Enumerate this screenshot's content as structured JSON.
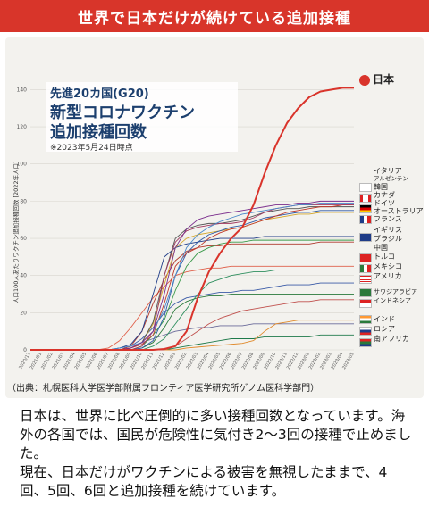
{
  "banner": {
    "title": "世界で日本だけが続けている追加接種"
  },
  "chart_data": {
    "type": "line",
    "title": "先進20カ国(G20)",
    "subtitle_line1": "新型コロナワクチン",
    "subtitle_line2": "追加接種回数",
    "note": "※2023年5月24日時点",
    "ylabel": "人口100人あたりワクチン追加接種回数 [2022年人口]",
    "ylim": [
      0,
      145
    ],
    "yticks": [
      0,
      20,
      40,
      60,
      80,
      100,
      120,
      140
    ],
    "x": [
      "2020/12",
      "2021/01",
      "2021/02",
      "2021/03",
      "2021/04",
      "2021/05",
      "2021/06",
      "2021/07",
      "2021/08",
      "2021/09",
      "2021/10",
      "2021/11",
      "2021/12",
      "2022/01",
      "2022/02",
      "2022/03",
      "2022/04",
      "2022/05",
      "2022/06",
      "2022/07",
      "2022/08",
      "2022/09",
      "2022/10",
      "2022/11",
      "2022/12",
      "2023/01",
      "2023/02",
      "2023/03",
      "2023/04",
      "2023/05"
    ],
    "series": [
      {
        "name": "日本",
        "color": "#d9342b",
        "highlight": true,
        "values": [
          0,
          0,
          0,
          0,
          0,
          0,
          0,
          0,
          0,
          0,
          0,
          0,
          0.5,
          2,
          10,
          28,
          42,
          52,
          60,
          66,
          78,
          95,
          110,
          122,
          130,
          136,
          139,
          140,
          141,
          141
        ]
      },
      {
        "name": "イタリア",
        "color": "#7a2d8c",
        "values": [
          0,
          0,
          0,
          0,
          0,
          0,
          0,
          0,
          0,
          1,
          4,
          10,
          30,
          55,
          65,
          70,
          72,
          73,
          74,
          75,
          76,
          77,
          78,
          78,
          79,
          79,
          80,
          80,
          80,
          80
        ]
      },
      {
        "name": "アルゼンチン",
        "color": "#4a89c9",
        "values": [
          0,
          0,
          0,
          0,
          0,
          0,
          0,
          0,
          1,
          2,
          4,
          10,
          22,
          40,
          55,
          62,
          66,
          69,
          71,
          73,
          74,
          75,
          76,
          77,
          78,
          78,
          79,
          79,
          79,
          79
        ]
      },
      {
        "name": "韓国",
        "color": "#a23a62",
        "values": [
          0,
          0,
          0,
          0,
          0,
          0,
          0,
          0,
          0,
          0,
          2,
          10,
          40,
          58,
          64,
          66,
          67,
          68,
          68,
          69,
          71,
          74,
          76,
          77,
          78,
          78,
          78,
          78,
          78,
          78
        ]
      },
      {
        "name": "カナダ",
        "color": "#c0392b",
        "values": [
          0,
          0,
          0,
          0,
          0,
          0,
          0,
          0,
          0,
          1,
          3,
          8,
          25,
          45,
          52,
          55,
          60,
          63,
          65,
          66,
          68,
          70,
          72,
          74,
          75,
          76,
          77,
          77,
          78,
          78
        ]
      },
      {
        "name": "ドイツ",
        "color": "#555555",
        "values": [
          0,
          0,
          0,
          0,
          0,
          0,
          0,
          0,
          0,
          1,
          4,
          15,
          40,
          60,
          65,
          67,
          68,
          68,
          69,
          70,
          72,
          74,
          75,
          76,
          76,
          77,
          77,
          77,
          77,
          77
        ]
      },
      {
        "name": "オーストラリア",
        "color": "#2e5aa8",
        "values": [
          0,
          0,
          0,
          0,
          0,
          0,
          0,
          0,
          0,
          0,
          1,
          5,
          18,
          40,
          52,
          58,
          62,
          64,
          66,
          67,
          69,
          71,
          72,
          73,
          74,
          74,
          75,
          75,
          75,
          75
        ]
      },
      {
        "name": "フランス",
        "color": "#d4a72c",
        "values": [
          0,
          0,
          0,
          0,
          0,
          0,
          0,
          0,
          0,
          1,
          4,
          14,
          35,
          55,
          60,
          62,
          63,
          64,
          65,
          66,
          68,
          70,
          71,
          72,
          73,
          73,
          74,
          74,
          74,
          74
        ]
      },
      {
        "name": "イギリス",
        "color": "#1f3c88",
        "values": [
          0,
          0,
          0,
          0,
          0,
          0,
          0,
          0,
          1,
          3,
          10,
          30,
          50,
          55,
          57,
          58,
          59,
          60,
          60,
          60,
          60,
          61,
          61,
          61,
          61,
          61,
          61,
          61,
          61,
          61
        ]
      },
      {
        "name": "ブラジル",
        "color": "#3a9a4a",
        "values": [
          0,
          0,
          0,
          0,
          0,
          0,
          0,
          0,
          0,
          0,
          2,
          8,
          16,
          32,
          45,
          52,
          55,
          57,
          58,
          58,
          59,
          59,
          59,
          59,
          59,
          59,
          59,
          59,
          59,
          59
        ]
      },
      {
        "name": "中国",
        "color": "#b03a2e",
        "values": [
          0,
          0,
          0,
          0,
          0,
          0,
          0,
          0,
          0,
          2,
          10,
          25,
          38,
          48,
          53,
          55,
          56,
          56,
          57,
          57,
          57,
          57,
          57,
          57,
          57,
          57,
          58,
          58,
          58,
          58
        ]
      },
      {
        "name": "トルコ",
        "color": "#e0604a",
        "values": [
          0,
          0,
          0,
          0,
          0,
          0,
          0,
          1,
          5,
          12,
          20,
          28,
          34,
          40,
          42,
          43,
          44,
          44,
          45,
          45,
          45,
          45,
          45,
          45,
          45,
          45,
          45,
          45,
          45,
          45
        ]
      },
      {
        "name": "メキシコ",
        "color": "#2f8f5f",
        "values": [
          0,
          0,
          0,
          0,
          0,
          0,
          0,
          0,
          0,
          0,
          0,
          2,
          6,
          14,
          22,
          30,
          36,
          38,
          40,
          41,
          42,
          42,
          43,
          43,
          43,
          43,
          43,
          43,
          43,
          43
        ]
      },
      {
        "name": "アメリカ",
        "color": "#3b5ba7",
        "values": [
          0,
          0,
          0,
          0,
          0,
          0,
          0,
          0,
          0,
          2,
          6,
          12,
          20,
          25,
          28,
          29,
          30,
          31,
          31,
          32,
          32,
          33,
          34,
          35,
          35,
          35,
          36,
          36,
          36,
          36
        ]
      },
      {
        "name": "サウジアラビア",
        "color": "#2a7a3b",
        "values": [
          0,
          0,
          0,
          0,
          0,
          0,
          0,
          0,
          0,
          0,
          1,
          4,
          12,
          22,
          26,
          28,
          29,
          29,
          30,
          30,
          30,
          30,
          30,
          30,
          30,
          30,
          30,
          30,
          30,
          30
        ]
      },
      {
        "name": "インドネシア",
        "color": "#c0504d",
        "values": [
          0,
          0,
          0,
          0,
          0,
          0,
          0,
          0,
          0,
          0,
          0,
          0,
          0,
          2,
          6,
          10,
          14,
          17,
          19,
          21,
          22,
          23,
          24,
          25,
          26,
          26,
          27,
          27,
          27,
          27
        ]
      },
      {
        "name": "インド",
        "color": "#e08a2c",
        "values": [
          0,
          0,
          0,
          0,
          0,
          0,
          0,
          0,
          0,
          0,
          0,
          0,
          0,
          0,
          1,
          1.5,
          2,
          2.5,
          3,
          3.5,
          5,
          10,
          14,
          15,
          16,
          16,
          16,
          16,
          16,
          16
        ]
      },
      {
        "name": "ロシア",
        "color": "#6b6b9a",
        "values": [
          0,
          0,
          0,
          0,
          0,
          0,
          0,
          0,
          1,
          2,
          4,
          6,
          8,
          10,
          11,
          12,
          12,
          13,
          13,
          13,
          14,
          14,
          14,
          14,
          14,
          14,
          14,
          14,
          14,
          14
        ]
      },
      {
        "name": "南アフリカ",
        "color": "#1e7a4a",
        "values": [
          0,
          0,
          0,
          0,
          0,
          0,
          0,
          0,
          0,
          0,
          0,
          0,
          0,
          1,
          2,
          3,
          4,
          5,
          6,
          6,
          6,
          7,
          7,
          7,
          7,
          7,
          8,
          8,
          8,
          8
        ]
      }
    ]
  },
  "legend": {
    "japan": "日本",
    "group1": [
      "イタリア",
      "アルゼンチン",
      "韓国",
      "カナダ",
      "ドイツ",
      "オーストラリア",
      "フランス"
    ],
    "group2": [
      "イギリス",
      "ブラジル",
      "中国"
    ],
    "group3": [
      "トルコ",
      "メキシコ",
      "アメリカ"
    ],
    "group4": [
      "サウジアラビア",
      "インドネシア"
    ],
    "group5": [
      "インド",
      "ロシア",
      "南アフリカ"
    ]
  },
  "source": "（出典：札幌医科大学医学部附属フロンティア医学研究所ゲノム医科学部門）",
  "body": [
    "日本は、世界に比べ圧倒的に多い接種回数となっています。海外の各国では、国民が危険性に気付き2〜3回の接種で止めました。",
    "現在、日本だけがワクチンによる被害を無視したままで、4回、5回、6回と追加接種を続けています。"
  ]
}
